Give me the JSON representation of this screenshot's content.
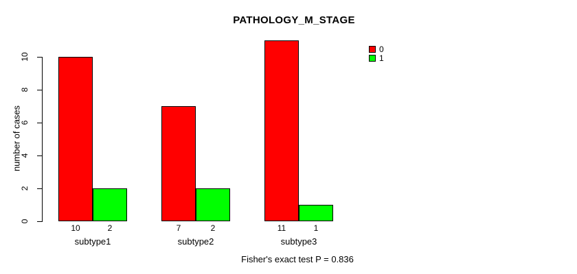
{
  "chart_data": {
    "type": "bar",
    "title": "PATHOLOGY_M_STAGE",
    "xlabel": "",
    "ylabel": "number of cases",
    "categories": [
      "subtype1",
      "subtype2",
      "subtype3"
    ],
    "series": [
      {
        "name": "0",
        "color": "#ff0000",
        "values": [
          10,
          7,
          11
        ]
      },
      {
        "name": "1",
        "color": "#00ff00",
        "values": [
          2,
          2,
          1
        ]
      }
    ],
    "bar_value_labels": [
      [
        "10",
        "2"
      ],
      [
        "7",
        "2"
      ],
      [
        "11",
        "1"
      ]
    ],
    "ylim": [
      0,
      11
    ],
    "yticks": [
      0,
      2,
      4,
      6,
      8,
      10
    ],
    "grid": false,
    "legend_position": "top-right",
    "legend_entries": [
      {
        "label": "0",
        "color": "#ff0000"
      },
      {
        "label": "1",
        "color": "#00ff00"
      }
    ],
    "annotation": "Fisher's exact test P = 0.836"
  }
}
